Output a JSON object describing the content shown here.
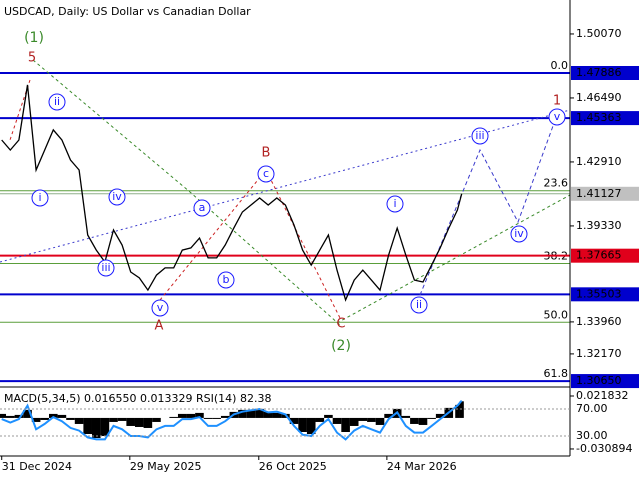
{
  "chart_data": [
    {
      "type": "line",
      "title": "USDCAD, Daily:  US Dollar vs Canadian Dollar",
      "x": [
        "2024-12-31",
        "2025-01-10",
        "2025-01-20",
        "2025-01-30",
        "2025-02-09",
        "2025-02-19",
        "2025-03-01",
        "2025-03-11",
        "2025-03-21",
        "2025-03-31",
        "2025-04-10",
        "2025-04-20",
        "2025-04-30",
        "2025-05-10",
        "2025-05-20",
        "2025-05-30",
        "2025-06-09",
        "2025-06-19",
        "2025-06-29",
        "2025-07-09",
        "2025-07-19",
        "2025-07-29",
        "2025-08-08",
        "2025-08-18",
        "2025-08-28",
        "2025-09-07",
        "2025-09-17",
        "2025-09-27",
        "2025-10-07",
        "2025-10-17",
        "2025-10-27",
        "2025-11-06",
        "2025-11-16",
        "2025-11-26",
        "2025-12-06",
        "2025-12-16",
        "2025-12-26",
        "2026-01-05",
        "2026-01-15",
        "2026-01-25",
        "2026-02-04",
        "2026-02-14",
        "2026-02-24",
        "2026-03-06",
        "2026-03-16",
        "2026-03-26",
        "2026-04-05",
        "2026-04-15",
        "2026-04-25",
        "2026-05-05",
        "2026-05-15",
        "2026-05-25",
        "2026-06-04",
        "2026-06-14",
        "2026-06-19"
      ],
      "values": [
        1.4414,
        1.4358,
        1.4414,
        1.4722,
        1.4246,
        1.4358,
        1.447,
        1.4414,
        1.4302,
        1.4246,
        1.3882,
        1.3798,
        1.3731,
        1.391,
        1.3826,
        1.3675,
        1.3642,
        1.3574,
        1.3658,
        1.3698,
        1.3698,
        1.3798,
        1.381,
        1.3865,
        1.3754,
        1.3754,
        1.3826,
        1.3921,
        1.4011,
        1.405,
        1.4089,
        1.405,
        1.4089,
        1.405,
        1.3938,
        1.3798,
        1.3714,
        1.3798,
        1.3882,
        1.3686,
        1.3519,
        1.363,
        1.3686,
        1.363,
        1.3574,
        1.377,
        1.3921,
        1.377,
        1.363,
        1.3619,
        1.3714,
        1.381,
        1.3921,
        1.4022,
        1.41127
      ],
      "color": "#000000",
      "xlim": [
        "2024-12-29",
        "2026-10-23"
      ],
      "xticks": [
        {
          "value": "2024-12-31",
          "label": "31 Dec 2024"
        },
        {
          "value": "2025-05-29",
          "label": "29 May 2025"
        },
        {
          "value": "2025-10-26",
          "label": "26 Oct 2025"
        },
        {
          "value": "2026-03-24",
          "label": "24 Mar 2026"
        }
      ],
      "ylim": [
        1.3043,
        1.5197
      ],
      "yticks": [
        {
          "value": 1.5007,
          "label": "1.50070"
        },
        {
          "value": 1.4649,
          "label": "1.46490"
        },
        {
          "value": 1.4291,
          "label": "1.42910"
        },
        {
          "value": 1.3933,
          "label": "1.39330"
        },
        {
          "value": 1.3396,
          "label": "1.33960"
        },
        {
          "value": 1.3217,
          "label": "1.32170"
        }
      ],
      "levels": [
        {
          "value": 1.47886,
          "label": "1.47886",
          "color": "#0000cd"
        },
        {
          "value": 1.45363,
          "label": "1.45363",
          "color": "#0000cd"
        },
        {
          "value": 1.41127,
          "label": "1.41127",
          "color": "#c0c0c0"
        },
        {
          "value": 1.37665,
          "label": "1.37665",
          "color": "#e0001b"
        },
        {
          "value": 1.35503,
          "label": "1.35503",
          "color": "#0000cd"
        },
        {
          "value": 1.3065,
          "label": "1.30650",
          "color": "#0000cd"
        }
      ],
      "fib_levels": [
        {
          "value": 1.47886,
          "label": "0.0"
        },
        {
          "value": 1.413,
          "label": "23.6"
        },
        {
          "value": 1.3723,
          "label": "38.2"
        },
        {
          "value": 1.3394,
          "label": "50.0"
        },
        {
          "value": 1.3065,
          "label": "61.8"
        }
      ],
      "fib_color": "#5a9e3a",
      "annotations": [
        "(1)",
        "5",
        "ii",
        "i",
        "iv",
        "iii",
        "v",
        "A",
        "a",
        "b",
        "c",
        "B",
        "C",
        "(2)",
        "i",
        "ii",
        "iii",
        "iv",
        "v",
        "1"
      ]
    },
    {
      "type": "macd",
      "title": "MACD(5,34,5) 0.016550 0.013329 RSI(14) 82.38",
      "series": [
        {
          "values": [
            0.004,
            0.002,
            0.003,
            0.008,
            -0.004,
            -0.002,
            0.004,
            0.003,
            -0.002,
            -0.006,
            -0.016,
            -0.02,
            -0.018,
            -0.004,
            -0.003,
            -0.008,
            -0.009,
            -0.01,
            -0.004,
            0.0,
            0.001,
            0.004,
            0.004,
            0.005,
            -0.001,
            -0.001,
            0.002,
            0.006,
            0.008,
            0.008,
            0.009,
            0.006,
            0.005,
            0.004,
            -0.006,
            -0.014,
            -0.016,
            -0.004,
            0.003,
            -0.006,
            -0.014,
            -0.008,
            -0.003,
            -0.004,
            -0.007,
            0.004,
            0.009,
            0.002,
            -0.006,
            -0.007,
            -0.001,
            0.004,
            0.01,
            0.013,
            0.01655
          ],
          "color": "#000000"
        },
        {
          "values": [
            55,
            50,
            55,
            75,
            40,
            48,
            58,
            52,
            42,
            38,
            28,
            25,
            25,
            45,
            40,
            30,
            30,
            28,
            40,
            45,
            45,
            55,
            55,
            58,
            45,
            45,
            52,
            62,
            66,
            68,
            70,
            65,
            66,
            62,
            45,
            32,
            30,
            45,
            55,
            35,
            25,
            38,
            45,
            40,
            35,
            55,
            65,
            45,
            35,
            35,
            45,
            55,
            65,
            75,
            82.38
          ],
          "color": "#1e90ff",
          "axis": "y2"
        }
      ],
      "ylim": [
        -0.0369,
        0.0288
      ],
      "yticks": [
        {
          "value": 0.021832,
          "label": "0.021832"
        },
        {
          "value": -0.030894,
          "label": "-0.030894"
        }
      ],
      "y2lim": [
        1.9,
        99.6
      ],
      "y2ticks": [
        {
          "value": 70,
          "label": "70.00"
        },
        {
          "value": 30,
          "label": "30.00"
        }
      ]
    }
  ]
}
